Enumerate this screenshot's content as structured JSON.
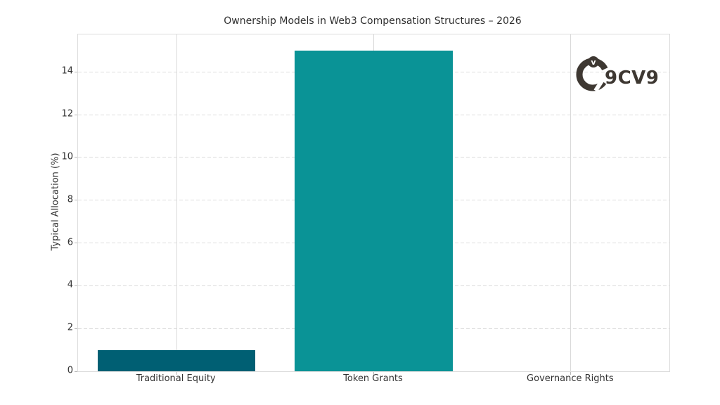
{
  "logo": {
    "text": "9CV9",
    "color": "#3e3832"
  },
  "chart_data": {
    "type": "bar",
    "title": "Ownership Models in Web3 Compensation Structures – 2026",
    "categories": [
      "Traditional Equity",
      "Token Grants",
      "Governance Rights"
    ],
    "values": [
      1,
      15,
      0
    ],
    "bar_colors": [
      "#005f73",
      "#0a9396",
      "#94d2bd"
    ],
    "xlabel": "",
    "ylabel": "Typical Allocation (%)",
    "yticks": [
      0,
      2,
      4,
      6,
      8,
      10,
      12,
      14
    ],
    "ylim": [
      0,
      15.75
    ],
    "grid": {
      "horizontal": "dashed",
      "vertical": "solid"
    },
    "legend_position": "none",
    "background": "#ffffff"
  }
}
